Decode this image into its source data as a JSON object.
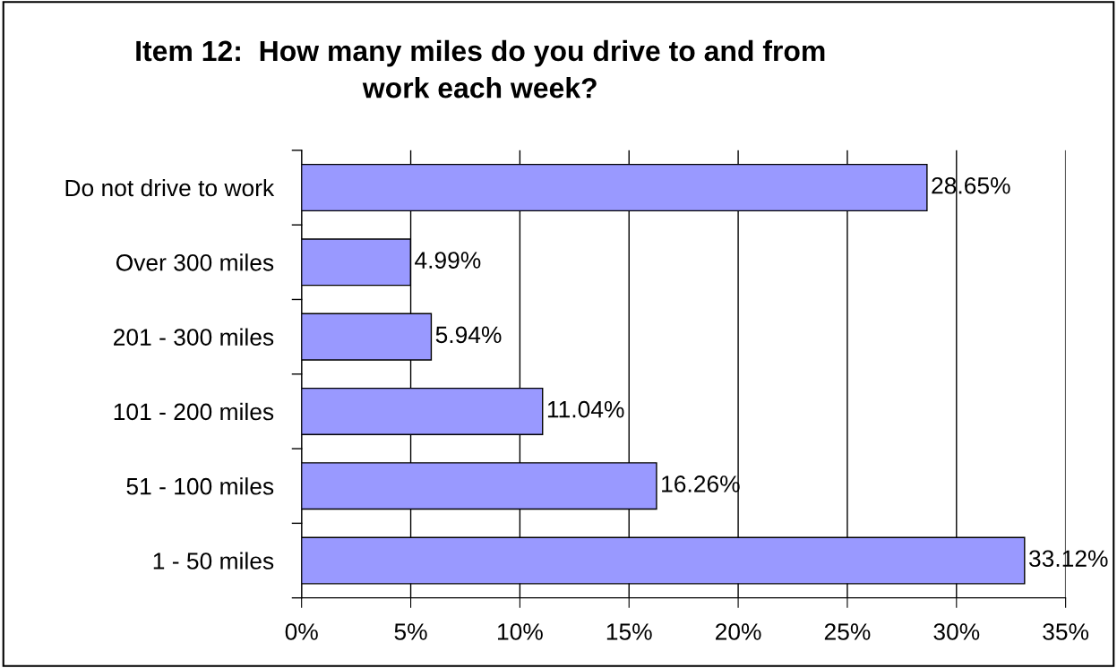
{
  "chart_data": {
    "type": "bar",
    "orientation": "horizontal",
    "title": "Item 12:  How many miles do you drive to and from\nwork each week?",
    "categories": [
      "Do not drive to work",
      "Over 300 miles",
      "201 - 300 miles",
      "101 - 200 miles",
      "51 - 100 miles",
      "1 - 50 miles"
    ],
    "values": [
      28.65,
      4.99,
      5.94,
      11.04,
      16.26,
      33.12
    ],
    "value_labels": [
      "28.65%",
      "4.99%",
      "5.94%",
      "11.04%",
      "16.26%",
      "33.12%"
    ],
    "color": "#9999ff",
    "xlim": [
      0,
      35
    ],
    "xticks": [
      {
        "value": 0,
        "label": "0%"
      },
      {
        "value": 5,
        "label": "5%"
      },
      {
        "value": 10,
        "label": "10%"
      },
      {
        "value": 15,
        "label": "15%"
      },
      {
        "value": 20,
        "label": "20%"
      },
      {
        "value": 25,
        "label": "25%"
      },
      {
        "value": 30,
        "label": "30%"
      },
      {
        "value": 35,
        "label": "35%"
      }
    ],
    "grid": "x",
    "legend": false
  }
}
